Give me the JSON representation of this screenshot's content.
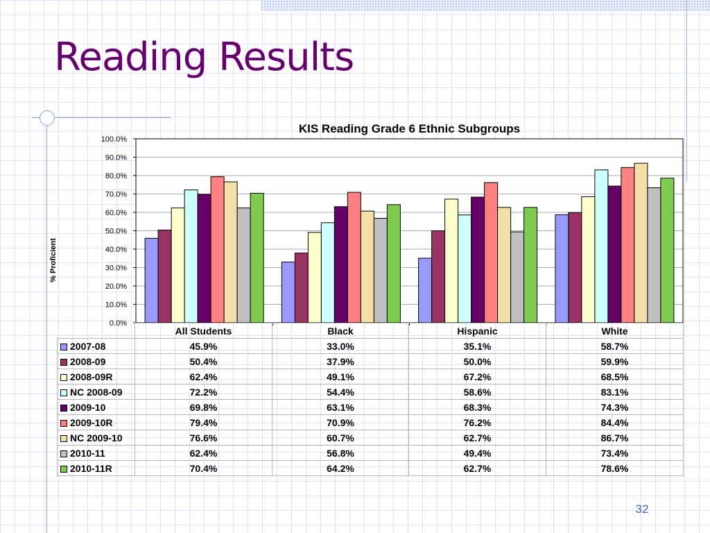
{
  "slide": {
    "title": "Reading Results",
    "page_number": "32"
  },
  "colors": {
    "title": "#66006e",
    "page_number": "#4a62c0",
    "grid": "#dde3f3"
  },
  "chart_data": {
    "type": "bar",
    "title": "KIS Reading Grade 6 Ethnic Subgroups",
    "ylabel": "% Proficient",
    "ylim": [
      0,
      100
    ],
    "y_ticks": [
      "0.0%",
      "10.0%",
      "20.0%",
      "30.0%",
      "40.0%",
      "50.0%",
      "60.0%",
      "70.0%",
      "80.0%",
      "90.0%",
      "100.0%"
    ],
    "gridlines": true,
    "legend": "data-table",
    "categories": [
      "All Students",
      "Black",
      "Hispanic",
      "White"
    ],
    "series": [
      {
        "name": "2007-08",
        "color": "#9999ff",
        "values": [
          45.9,
          33.0,
          35.1,
          58.7
        ],
        "labels": [
          "45.9%",
          "33.0%",
          "35.1%",
          "58.7%"
        ]
      },
      {
        "name": "2008-09",
        "color": "#993366",
        "values": [
          50.4,
          37.9,
          50.0,
          59.9
        ],
        "labels": [
          "50.4%",
          "37.9%",
          "50.0%",
          "59.9%"
        ]
      },
      {
        "name": "2008-09R",
        "color": "#ffffcc",
        "values": [
          62.4,
          49.1,
          67.2,
          68.5
        ],
        "labels": [
          "62.4%",
          "49.1%",
          "67.2%",
          "68.5%"
        ]
      },
      {
        "name": "NC 2008-09",
        "color": "#ccffff",
        "values": [
          72.2,
          54.4,
          58.6,
          83.1
        ],
        "labels": [
          "72.2%",
          "54.4%",
          "58.6%",
          "83.1%"
        ]
      },
      {
        "name": "2009-10",
        "color": "#660066",
        "values": [
          69.8,
          63.1,
          68.3,
          74.3
        ],
        "labels": [
          "69.8%",
          "63.1%",
          "68.3%",
          "74.3%"
        ]
      },
      {
        "name": "2009-10R",
        "color": "#ff8080",
        "values": [
          79.4,
          70.9,
          76.2,
          84.4
        ],
        "labels": [
          "79.4%",
          "70.9%",
          "76.2%",
          "84.4%"
        ]
      },
      {
        "name": "NC 2009-10",
        "color": "#f2e0a8",
        "values": [
          76.6,
          60.7,
          62.7,
          86.7
        ],
        "labels": [
          "76.6%",
          "60.7%",
          "62.7%",
          "86.7%"
        ]
      },
      {
        "name": "2010-11",
        "color": "#c0c0c0",
        "values": [
          62.4,
          56.8,
          49.4,
          73.4
        ],
        "labels": [
          "62.4%",
          "56.8%",
          "49.4%",
          "73.4%"
        ]
      },
      {
        "name": "2010-11R",
        "color": "#80cc50",
        "values": [
          70.4,
          64.2,
          62.7,
          78.6
        ],
        "labels": [
          "70.4%",
          "64.2%",
          "62.7%",
          "78.6%"
        ]
      }
    ]
  }
}
